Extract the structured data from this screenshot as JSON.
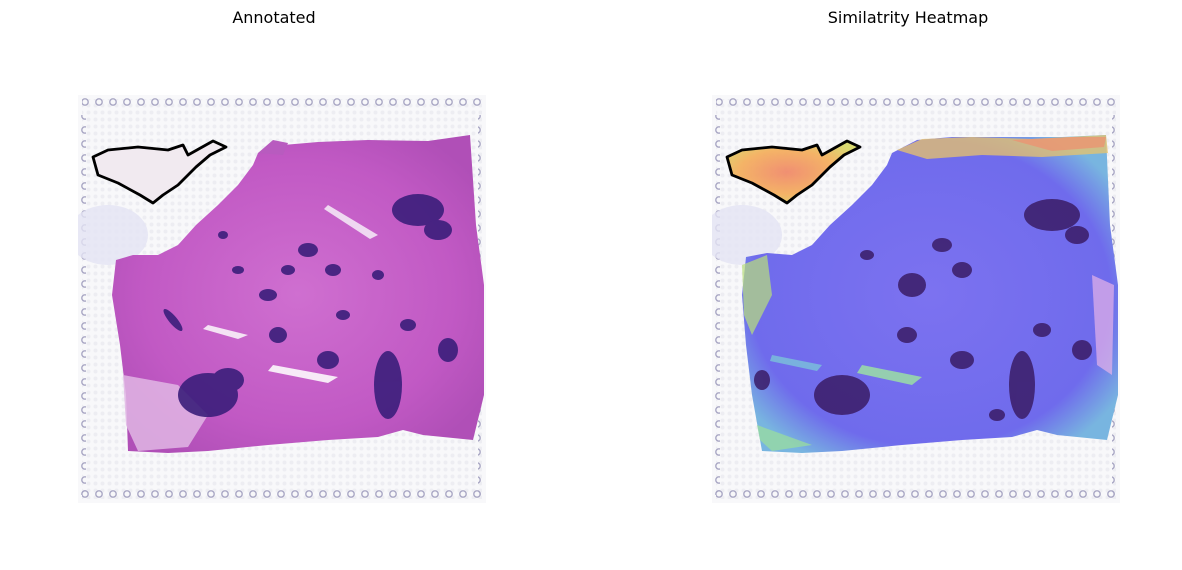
{
  "panels": [
    {
      "title": "Annotated"
    },
    {
      "title": "Similatrity Heatmap"
    }
  ],
  "colors": {
    "tissue_pink": "#c457c6",
    "nuclei_purple": "#3a1c7a",
    "heat_blue": "#6d6cf0",
    "heat_hot": "#f6a65a",
    "heat_green": "#8fe08a",
    "annotation_outline": "#000000"
  }
}
